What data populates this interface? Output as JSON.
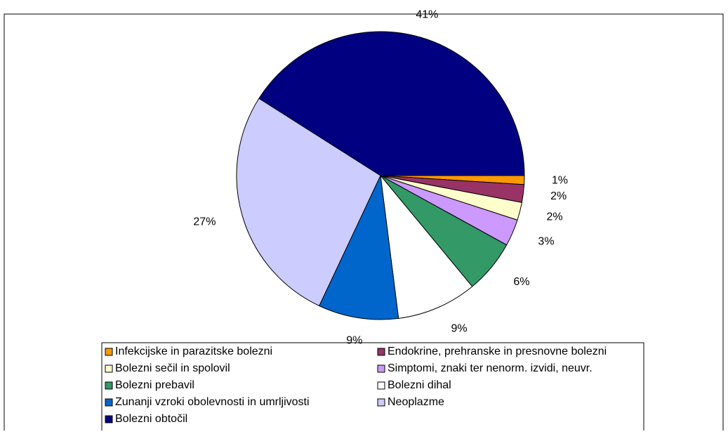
{
  "chart_data": {
    "type": "pie",
    "categories": [
      "Infekcijske in parazitske bolezni",
      "Endokrine, prehranske in presnovne bolezni",
      "Bolezni sečil in spolovil",
      "Simptomi, znaki ter nenorm. izvidi, neuvr.",
      "Bolezni prebavil",
      "Bolezni dihal",
      "Zunanji vzroki obolevnosti in umrljivosti",
      "Neoplazme",
      "Bolezni obtočil"
    ],
    "values": [
      1,
      2,
      2,
      3,
      6,
      9,
      9,
      27,
      41
    ],
    "value_labels": [
      "1%",
      "2%",
      "2%",
      "3%",
      "6%",
      "9%",
      "9%",
      "27%",
      "41%"
    ],
    "colors": [
      "#ff9900",
      "#993366",
      "#ffffcc",
      "#cc99ff",
      "#339966",
      "#ffffff",
      "#0066cc",
      "#ccccff",
      "#000080"
    ],
    "legend": "bottom"
  }
}
